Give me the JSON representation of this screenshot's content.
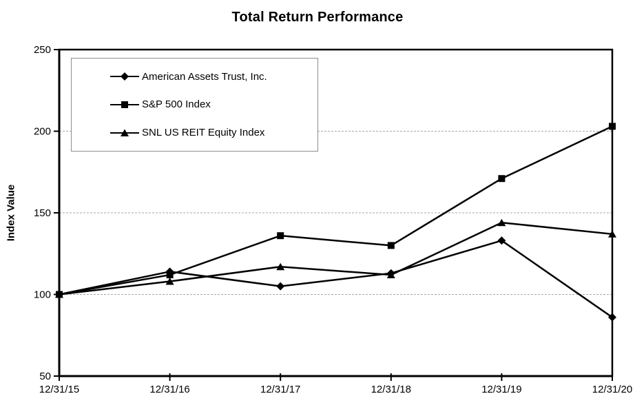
{
  "page": {
    "background": "#ffffff"
  },
  "chart_data": {
    "type": "line",
    "title": "Total Return Performance",
    "xlabel": "",
    "ylabel": "Index Value",
    "categories": [
      "12/31/15",
      "12/31/16",
      "12/31/17",
      "12/31/18",
      "12/31/19",
      "12/31/20"
    ],
    "series": [
      {
        "name": "American Assets Trust, Inc.",
        "marker": "diamond",
        "color": "#000000",
        "values": [
          100,
          114,
          105,
          113,
          133,
          86
        ]
      },
      {
        "name": "S&P 500 Index",
        "marker": "square",
        "color": "#000000",
        "values": [
          100,
          112,
          136,
          130,
          171,
          203
        ]
      },
      {
        "name": "SNL US REIT Equity Index",
        "marker": "triangle",
        "color": "#000000",
        "values": [
          100,
          108,
          117,
          112,
          144,
          137
        ]
      }
    ],
    "ylim": [
      50,
      250
    ],
    "yticks": [
      50,
      100,
      150,
      200,
      250
    ],
    "gridlines": {
      "values": [
        100,
        150,
        200
      ],
      "style": "dashed",
      "color": "#a6a6a6"
    },
    "legend": {
      "position": "top-left",
      "border_color": "#8c8c8c"
    },
    "axis_color": "#000000"
  }
}
